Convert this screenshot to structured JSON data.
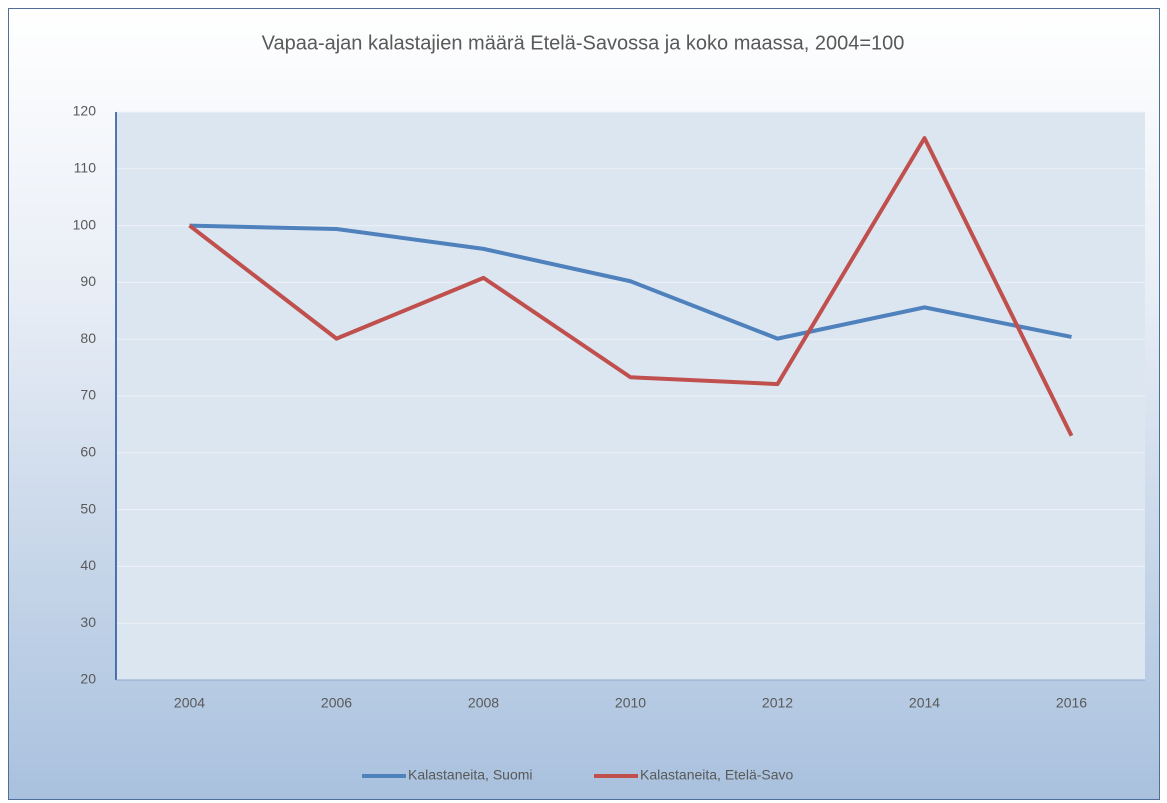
{
  "chart_data": {
    "type": "line",
    "title": "Vapaa-ajan kalastajien määrä Etelä-Savossa ja koko maassa, 2004=100",
    "categories": [
      "2004",
      "2006",
      "2008",
      "2010",
      "2012",
      "2014",
      "2016"
    ],
    "series": [
      {
        "name": "Kalastaneita, Suomi",
        "color": "#4f81bd",
        "values": [
          100,
          99.4,
          95.9,
          90.2,
          80.1,
          85.6,
          80.4
        ]
      },
      {
        "name": "Kalastaneita, Etelä-Savo",
        "color": "#c0504d",
        "values": [
          100,
          80.1,
          90.8,
          73.3,
          72.1,
          115.4,
          63
        ]
      }
    ],
    "ylim": [
      20,
      120
    ],
    "yticks": [
      20,
      30,
      40,
      50,
      60,
      70,
      80,
      90,
      100,
      110,
      120
    ],
    "grid": true,
    "legend": "bottom"
  }
}
